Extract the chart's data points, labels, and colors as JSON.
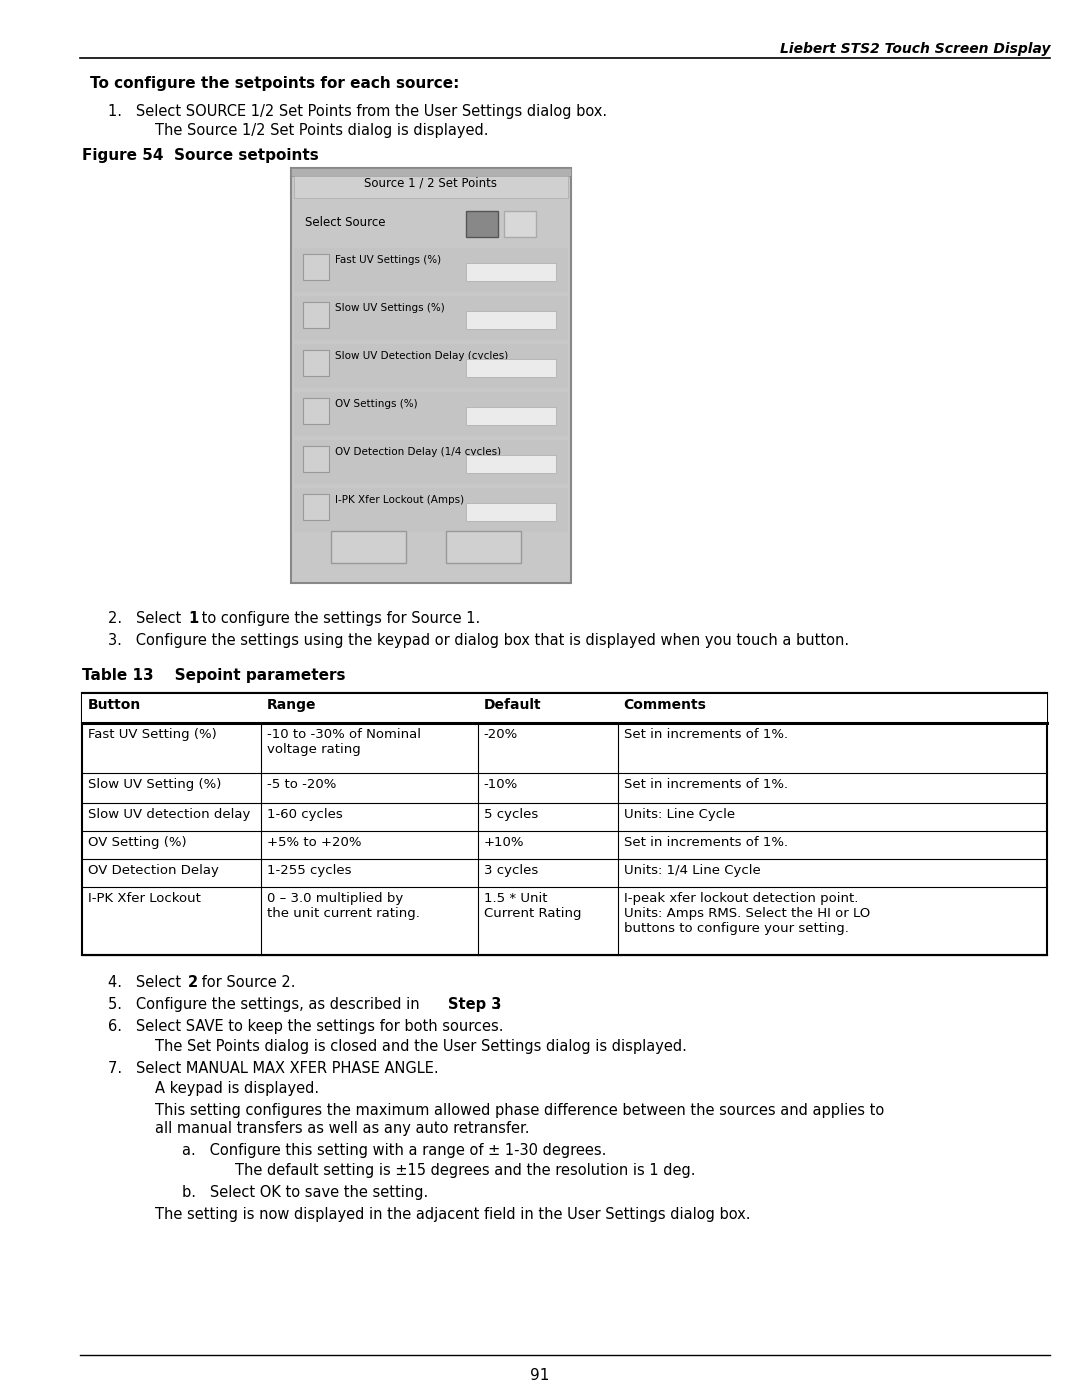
{
  "page_header": "Liebert STS2 Touch Screen Display",
  "page_number": "91",
  "bold_heading": "To configure the setpoints for each source:",
  "step1_line1": "Select SOURCE 1/2 Set Points from the User Settings dialog box.",
  "step1_line2": "The Source 1/2 Set Points dialog is displayed.",
  "figure_label": "Figure 54  Source setpoints",
  "dialog_title": "Source 1 / 2 Set Points",
  "dialog_rows": [
    "Fast UV Settings (%)",
    "Slow UV Settings (%)",
    "Slow UV Detection Delay (cycles)",
    "OV Settings (%)",
    "OV Detection Delay (1/4 cycles)",
    "I-PK Xfer Lockout (Amps)"
  ],
  "step3": "Configure the settings using the keypad or dialog box that is displayed when you touch a button.",
  "table_title": "Table 13    Sepoint parameters",
  "table_headers": [
    "Button",
    "Range",
    "Default",
    "Comments"
  ],
  "table_rows": [
    [
      "Fast UV Setting (%)",
      "-10 to -30% of Nominal\nvoltage rating",
      "-20%",
      "Set in increments of 1%."
    ],
    [
      "Slow UV Setting (%)",
      "-5 to -20%",
      "-10%",
      "Set in increments of 1%."
    ],
    [
      "Slow UV detection delay",
      "1-60 cycles",
      "5 cycles",
      "Units: Line Cycle"
    ],
    [
      "OV Setting (%)",
      "+5% to +20%",
      "+10%",
      "Set in increments of 1%."
    ],
    [
      "OV Detection Delay",
      "1-255 cycles",
      "3 cycles",
      "Units: 1/4 Line Cycle"
    ],
    [
      "I-PK Xfer Lockout",
      "0 – 3.0 multiplied by\nthe unit current rating.",
      "1.5 * Unit\nCurrent Rating",
      "I-peak xfer lockout detection point.\nUnits: Amps RMS. Select the HI or LO\nbuttons to configure your setting."
    ]
  ],
  "step6b": "The Set Points dialog is closed and the User Settings dialog is displayed.",
  "step7_final": "The setting is now displayed in the adjacent field in the User Settings dialog box.",
  "bg_color": "#ffffff",
  "text_color": "#000000"
}
